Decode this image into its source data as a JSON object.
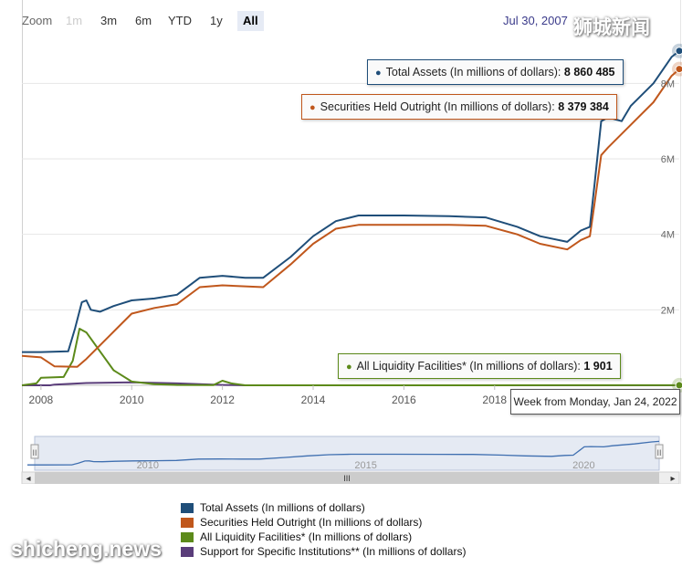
{
  "range_selector": {
    "label": "Zoom",
    "buttons": [
      {
        "label": "1m",
        "state": "disabled"
      },
      {
        "label": "3m",
        "state": "normal"
      },
      {
        "label": "6m",
        "state": "normal"
      },
      {
        "label": "YTD",
        "state": "normal"
      },
      {
        "label": "1y",
        "state": "normal"
      },
      {
        "label": "All",
        "state": "active"
      }
    ]
  },
  "date_readout": "Jul 30, 2007",
  "watermarks": {
    "top": "狮城新闻",
    "bottom": "shicheng.news"
  },
  "tooltips": {
    "total_assets": {
      "label": "Total Assets (In millions of dollars):",
      "value": "8 860 485"
    },
    "securities": {
      "label": "Securities Held Outright (In millions of dollars):",
      "value": "8 379 384"
    },
    "liquidity": {
      "label": "All Liquidity Facilities* (In millions of dollars):",
      "value": "1 901"
    }
  },
  "week_label": "Week from Monday, Jan 24, 2022",
  "legend": [
    {
      "label": "Total Assets (In millions of dollars)",
      "color": "#1f4e79"
    },
    {
      "label": "Securities Held Outright (In millions of dollars)",
      "color": "#c0571c"
    },
    {
      "label": "All Liquidity Facilities* (In millions of dollars)",
      "color": "#5c8a1a"
    },
    {
      "label": "Support for Specific Institutions** (In millions of dollars)",
      "color": "#5a3d7a"
    }
  ],
  "navigator": {
    "scrollbar_glyph": "III",
    "left_arrow": "◂",
    "right_arrow": "▸",
    "handle_glyph": "II"
  },
  "chart_data": {
    "type": "line",
    "x_unit": "year",
    "x_ticks": [
      "2008",
      "2010",
      "2012",
      "2014",
      "2016",
      "2018"
    ],
    "y_tick_labels": [
      "2M",
      "4M",
      "6M",
      "8M"
    ],
    "y_ticks": [
      2000000,
      4000000,
      6000000,
      8000000
    ],
    "xlim": [
      2007.58,
      2022.07
    ],
    "ylim": [
      0,
      9000000
    ],
    "grid": true,
    "legend_position": "bottom",
    "series": [
      {
        "name": "Total Assets (In millions of dollars)",
        "color": "#1f4e79",
        "points": [
          [
            2007.58,
            880000
          ],
          [
            2008.0,
            880000
          ],
          [
            2008.6,
            900000
          ],
          [
            2008.75,
            1500000
          ],
          [
            2008.9,
            2200000
          ],
          [
            2009.0,
            2250000
          ],
          [
            2009.1,
            2000000
          ],
          [
            2009.3,
            1950000
          ],
          [
            2009.6,
            2100000
          ],
          [
            2010.0,
            2250000
          ],
          [
            2010.5,
            2300000
          ],
          [
            2011.0,
            2400000
          ],
          [
            2011.5,
            2850000
          ],
          [
            2012.0,
            2900000
          ],
          [
            2012.5,
            2850000
          ],
          [
            2012.9,
            2850000
          ],
          [
            2013.5,
            3400000
          ],
          [
            2014.0,
            3950000
          ],
          [
            2014.5,
            4350000
          ],
          [
            2015.0,
            4500000
          ],
          [
            2016.0,
            4500000
          ],
          [
            2017.0,
            4480000
          ],
          [
            2017.8,
            4450000
          ],
          [
            2018.5,
            4200000
          ],
          [
            2019.0,
            3950000
          ],
          [
            2019.6,
            3800000
          ],
          [
            2019.9,
            4100000
          ],
          [
            2020.1,
            4200000
          ],
          [
            2020.2,
            5300000
          ],
          [
            2020.35,
            7000000
          ],
          [
            2020.5,
            7100000
          ],
          [
            2020.8,
            7000000
          ],
          [
            2021.0,
            7400000
          ],
          [
            2021.5,
            8000000
          ],
          [
            2021.9,
            8700000
          ],
          [
            2022.07,
            8860485
          ]
        ]
      },
      {
        "name": "Securities Held Outright (In millions of dollars)",
        "color": "#c0571c",
        "points": [
          [
            2007.58,
            780000
          ],
          [
            2008.0,
            740000
          ],
          [
            2008.3,
            500000
          ],
          [
            2008.8,
            490000
          ],
          [
            2009.0,
            700000
          ],
          [
            2009.5,
            1300000
          ],
          [
            2010.0,
            1900000
          ],
          [
            2010.5,
            2050000
          ],
          [
            2011.0,
            2150000
          ],
          [
            2011.5,
            2600000
          ],
          [
            2012.0,
            2650000
          ],
          [
            2012.9,
            2600000
          ],
          [
            2013.5,
            3200000
          ],
          [
            2014.0,
            3750000
          ],
          [
            2014.5,
            4150000
          ],
          [
            2015.0,
            4250000
          ],
          [
            2016.0,
            4250000
          ],
          [
            2017.0,
            4250000
          ],
          [
            2017.8,
            4230000
          ],
          [
            2018.5,
            4000000
          ],
          [
            2019.0,
            3750000
          ],
          [
            2019.6,
            3600000
          ],
          [
            2019.9,
            3850000
          ],
          [
            2020.1,
            3950000
          ],
          [
            2020.2,
            4800000
          ],
          [
            2020.35,
            6100000
          ],
          [
            2020.5,
            6300000
          ],
          [
            2021.0,
            6900000
          ],
          [
            2021.5,
            7500000
          ],
          [
            2021.9,
            8200000
          ],
          [
            2022.07,
            8379384
          ]
        ]
      },
      {
        "name": "All Liquidity Facilities* (In millions of dollars)",
        "color": "#5c8a1a",
        "points": [
          [
            2007.58,
            0
          ],
          [
            2007.9,
            50000
          ],
          [
            2008.0,
            200000
          ],
          [
            2008.5,
            220000
          ],
          [
            2008.7,
            650000
          ],
          [
            2008.85,
            1500000
          ],
          [
            2009.0,
            1400000
          ],
          [
            2009.3,
            900000
          ],
          [
            2009.6,
            400000
          ],
          [
            2010.0,
            100000
          ],
          [
            2010.5,
            30000
          ],
          [
            2011.0,
            10000
          ],
          [
            2011.8,
            5000
          ],
          [
            2012.0,
            120000
          ],
          [
            2012.2,
            50000
          ],
          [
            2012.5,
            0
          ],
          [
            2022.07,
            1901
          ]
        ]
      },
      {
        "name": "Support for Specific Institutions** (In millions of dollars)",
        "color": "#5a3d7a",
        "points": [
          [
            2007.58,
            0
          ],
          [
            2008.2,
            0
          ],
          [
            2008.3,
            20000
          ],
          [
            2009.0,
            60000
          ],
          [
            2010.0,
            80000
          ],
          [
            2011.0,
            50000
          ],
          [
            2012.0,
            10000
          ],
          [
            2012.5,
            0
          ],
          [
            2022.07,
            0
          ]
        ]
      }
    ]
  },
  "navigator_chart": {
    "x_ticks": [
      "2010",
      "2015",
      "2020"
    ]
  }
}
